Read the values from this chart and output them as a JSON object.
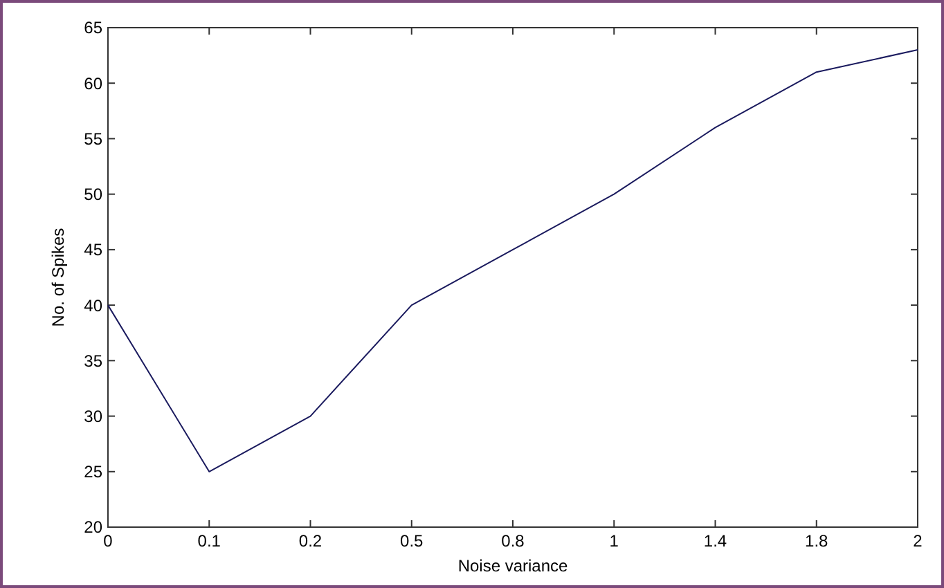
{
  "chart_data": {
    "type": "line",
    "xlabel": "Noise variance",
    "ylabel": "No. of Spikes",
    "categories": [
      "0",
      "0.1",
      "0.2",
      "0.5",
      "0.8",
      "1",
      "1.4",
      "1.8",
      "2"
    ],
    "series": [
      {
        "color": "#1a1a5e",
        "values": [
          40,
          25,
          30,
          40,
          45,
          50,
          56,
          61,
          63
        ]
      }
    ],
    "ylim": [
      20,
      65
    ],
    "yticks": [
      20,
      25,
      30,
      35,
      40,
      45,
      50,
      55,
      60,
      65
    ],
    "grid": false,
    "marker": "none",
    "line_style": "solid"
  }
}
